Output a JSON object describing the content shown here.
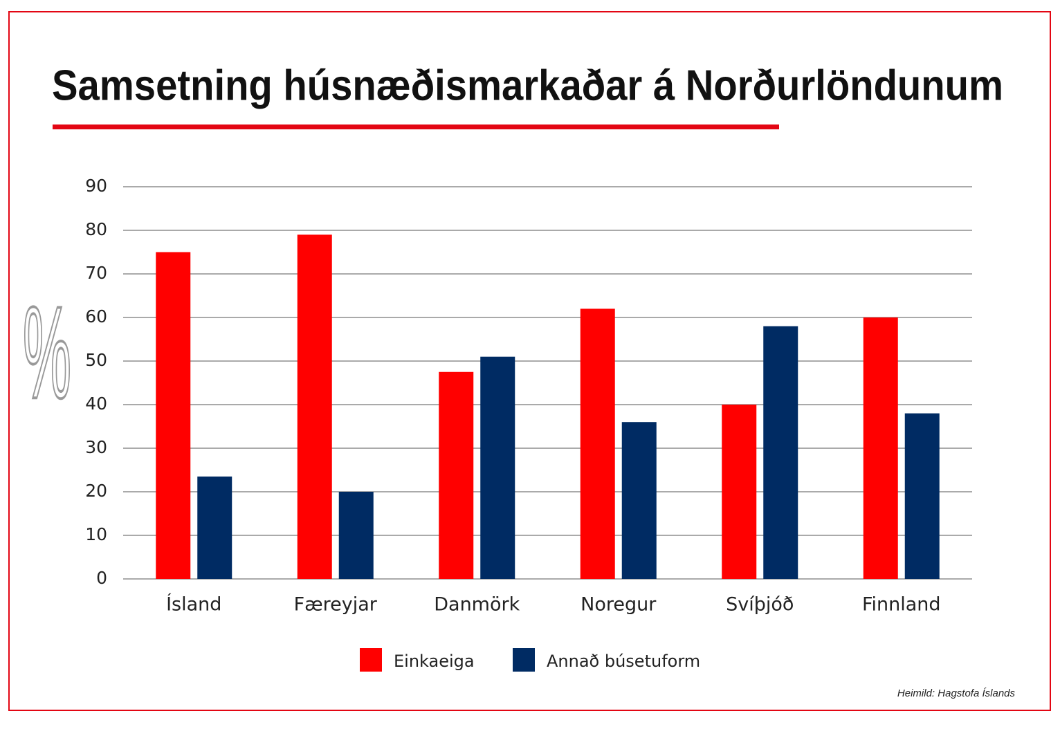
{
  "chart_data": {
    "type": "bar",
    "title": "Samsetning húsnæðismarkaðar á Norðurlöndunum",
    "y_label": "%",
    "categories": [
      "Ísland",
      "Færeyjar",
      "Danmörk",
      "Noregur",
      "Svíþjóð",
      "Finnland"
    ],
    "series": [
      {
        "name": "Einkaeiga",
        "color": "#ff0000",
        "values": [
          75,
          79,
          47.5,
          62,
          40,
          60
        ]
      },
      {
        "name": "Annað búsetuform",
        "color": "#002b63",
        "values": [
          23.5,
          20,
          51,
          36,
          58,
          38
        ]
      }
    ],
    "ylim": [
      0,
      90
    ],
    "yticks": [
      0,
      10,
      20,
      30,
      40,
      50,
      60,
      70,
      80,
      90
    ],
    "grid": true,
    "legend": "bottom",
    "source": "Heimild: Hagstofa Íslands"
  }
}
